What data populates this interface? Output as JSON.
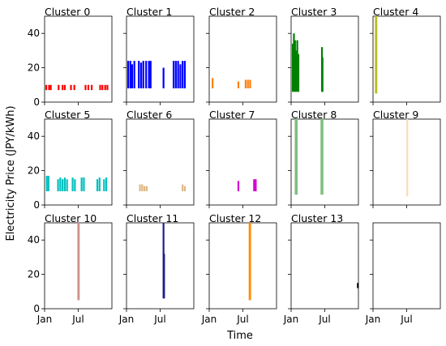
{
  "figure": {
    "ylabel": "Electricity Price (JPY/kWh)",
    "xlabel": "Time"
  },
  "chart_data": {
    "type": "scatter",
    "description_of_marks": "small multiples; each cluster shows vertical price ranges (segments) at times of the year",
    "xlim": [
      "Jan",
      "Dec"
    ],
    "x_ticks": [
      "Jan",
      "Jul"
    ],
    "ylim": [
      0,
      50
    ],
    "y_ticks": [
      0,
      20,
      40
    ],
    "panels": [
      {
        "title": "Cluster 0",
        "color": "#ff0000",
        "segments": [
          [
            0.3,
            7,
            10
          ],
          [
            0.8,
            7,
            10
          ],
          [
            1.1,
            7,
            10
          ],
          [
            2.5,
            7,
            10
          ],
          [
            3.2,
            7,
            10
          ],
          [
            3.6,
            7,
            10
          ],
          [
            4.7,
            7,
            10
          ],
          [
            5.3,
            7,
            10
          ],
          [
            7.3,
            7,
            10
          ],
          [
            7.8,
            7,
            10
          ],
          [
            8.4,
            7,
            10
          ],
          [
            9.9,
            7,
            10
          ],
          [
            10.3,
            7,
            10
          ],
          [
            10.8,
            7,
            10
          ],
          [
            11.2,
            7,
            10
          ]
        ]
      },
      {
        "title": "Cluster 1",
        "color": "#0000ff",
        "segments": [
          [
            0.3,
            8,
            24
          ],
          [
            0.7,
            8,
            24
          ],
          [
            1.0,
            8,
            22
          ],
          [
            1.4,
            8,
            24
          ],
          [
            2.2,
            8,
            24
          ],
          [
            2.6,
            8,
            23
          ],
          [
            3.0,
            8,
            24
          ],
          [
            3.5,
            8,
            24
          ],
          [
            4.0,
            8,
            24
          ],
          [
            4.3,
            8,
            24
          ],
          [
            6.6,
            8,
            20
          ],
          [
            8.4,
            8,
            24
          ],
          [
            8.8,
            8,
            24
          ],
          [
            9.2,
            8,
            24
          ],
          [
            9.6,
            8,
            22
          ],
          [
            10.0,
            8,
            24
          ],
          [
            10.4,
            8,
            24
          ]
        ]
      },
      {
        "title": "Cluster 2",
        "color": "#ff7f0e",
        "segments": [
          [
            0.6,
            8,
            14
          ],
          [
            5.2,
            8,
            12
          ],
          [
            6.5,
            8,
            13
          ],
          [
            6.9,
            8,
            13
          ],
          [
            7.3,
            8,
            13
          ]
        ]
      },
      {
        "title": "Cluster 3",
        "color": "#008000",
        "segments": [
          [
            0.3,
            6,
            34
          ],
          [
            0.5,
            6,
            40
          ],
          [
            0.7,
            6,
            36
          ],
          [
            0.9,
            6,
            30
          ],
          [
            1.1,
            6,
            36
          ],
          [
            1.3,
            6,
            28
          ],
          [
            5.5,
            6,
            32
          ],
          [
            5.6,
            6,
            26
          ]
        ]
      },
      {
        "title": "Cluster 4",
        "color": "#bcbd22",
        "segments": [
          [
            0.5,
            5,
            50
          ],
          [
            0.6,
            5,
            50
          ]
        ]
      },
      {
        "title": "Cluster 5",
        "color": "#00bfbf",
        "segments": [
          [
            0.4,
            8,
            17
          ],
          [
            0.7,
            8,
            17
          ],
          [
            2.4,
            8,
            15
          ],
          [
            2.8,
            8,
            16
          ],
          [
            3.2,
            8,
            15
          ],
          [
            3.6,
            8,
            16
          ],
          [
            4.0,
            8,
            15
          ],
          [
            5.0,
            8,
            16
          ],
          [
            5.4,
            8,
            15
          ],
          [
            6.6,
            8,
            16
          ],
          [
            7.0,
            8,
            16
          ],
          [
            9.4,
            8,
            15
          ],
          [
            9.8,
            8,
            16
          ],
          [
            10.6,
            8,
            15
          ],
          [
            11.0,
            8,
            16
          ]
        ]
      },
      {
        "title": "Cluster 6",
        "color": "#deb887",
        "segments": [
          [
            2.4,
            8,
            12
          ],
          [
            2.8,
            8,
            12
          ],
          [
            3.2,
            8,
            11
          ],
          [
            3.6,
            8,
            11
          ],
          [
            10.0,
            8,
            12
          ],
          [
            10.4,
            8,
            11
          ]
        ]
      },
      {
        "title": "Cluster 7",
        "color": "#d400d4",
        "segments": [
          [
            5.2,
            8,
            14
          ],
          [
            8.0,
            8,
            15
          ],
          [
            8.3,
            8,
            15
          ]
        ]
      },
      {
        "title": "Cluster 8",
        "color": "#7fbf7f",
        "segments": [
          [
            0.8,
            6,
            50
          ],
          [
            1.0,
            6,
            50
          ],
          [
            5.4,
            6,
            50
          ],
          [
            5.6,
            6,
            50
          ]
        ]
      },
      {
        "title": "Cluster 9",
        "color": "#ffdab9",
        "segments": [
          [
            6.1,
            5,
            50
          ]
        ]
      },
      {
        "title": "Cluster 10",
        "color": "#d2928a",
        "segments": [
          [
            6.0,
            5,
            50
          ],
          [
            6.1,
            5,
            50
          ]
        ]
      },
      {
        "title": "Cluster 11",
        "color": "#1f1f8c",
        "segments": [
          [
            6.6,
            6,
            50
          ],
          [
            6.7,
            6,
            32
          ]
        ]
      },
      {
        "title": "Cluster 12",
        "color": "#ff8c00",
        "segments": [
          [
            7.2,
            5,
            50
          ],
          [
            7.3,
            5,
            50
          ]
        ]
      },
      {
        "title": "Cluster 13",
        "color": "#000000",
        "segments": [
          [
            11.9,
            12,
            15
          ]
        ]
      },
      {
        "title": "",
        "color": "#000000",
        "segments": []
      }
    ]
  }
}
